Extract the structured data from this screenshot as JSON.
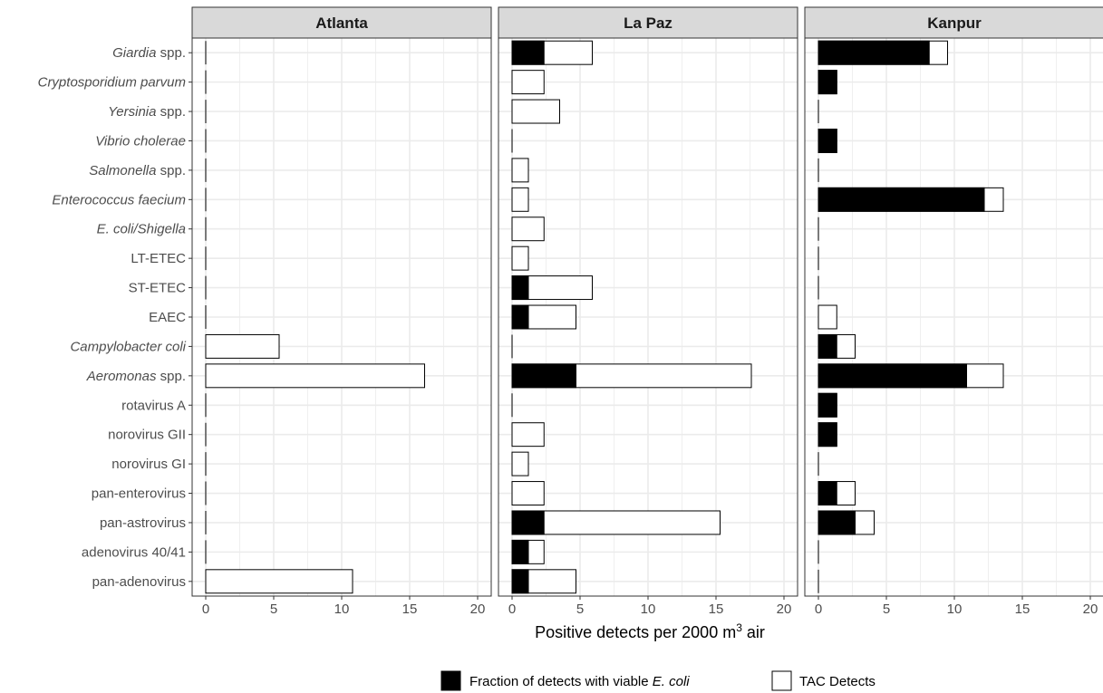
{
  "chart_data": {
    "type": "bar",
    "orientation": "horizontal",
    "stacked": "overlay",
    "xlabel": "Positive detects per 2000 m3 air",
    "xlabel_parts": {
      "prefix": "Positive detects per 2000 m",
      "superscript": "3",
      "suffix": " air"
    },
    "xlim": [
      0,
      20
    ],
    "xticks": [
      0,
      5,
      10,
      15,
      20
    ],
    "grid": true,
    "legend_position": "bottom",
    "categories": [
      {
        "name": "Giardia",
        "suffix": " spp.",
        "italic": true
      },
      {
        "name": "Cryptosporidium parvum",
        "suffix": "",
        "italic": true
      },
      {
        "name": "Yersinia",
        "suffix": " spp.",
        "italic": true
      },
      {
        "name": "Vibrio cholerae",
        "suffix": "",
        "italic": true
      },
      {
        "name": "Salmonella",
        "suffix": " spp.",
        "italic": true
      },
      {
        "name": "Enterococcus faecium",
        "suffix": "",
        "italic": true
      },
      {
        "name": "E. coli/Shigella",
        "suffix": "",
        "italic": true
      },
      {
        "name": "LT-ETEC",
        "suffix": "",
        "italic": false
      },
      {
        "name": "ST-ETEC",
        "suffix": "",
        "italic": false
      },
      {
        "name": "EAEC",
        "suffix": "",
        "italic": false
      },
      {
        "name": "Campylobacter coli",
        "suffix": "",
        "italic": true
      },
      {
        "name": "Aeromonas",
        "suffix": " spp.",
        "italic": true
      },
      {
        "name": "rotavirus A",
        "suffix": "",
        "italic": false
      },
      {
        "name": "norovirus GII",
        "suffix": "",
        "italic": false
      },
      {
        "name": "norovirus GI",
        "suffix": "",
        "italic": false
      },
      {
        "name": "pan-enterovirus",
        "suffix": "",
        "italic": false
      },
      {
        "name": "pan-astrovirus",
        "suffix": "",
        "italic": false
      },
      {
        "name": "adenovirus 40/41",
        "suffix": "",
        "italic": false
      },
      {
        "name": "pan-adenovirus",
        "suffix": "",
        "italic": false
      }
    ],
    "panels": [
      {
        "title": "Atlanta",
        "tac_detects": [
          0,
          0,
          0,
          0,
          0,
          0,
          0,
          0,
          0,
          0,
          5.4,
          16.1,
          0,
          0,
          0,
          0,
          0,
          0,
          10.8
        ],
        "viable_e_coli": [
          0,
          0,
          0,
          0,
          0,
          0,
          0,
          0,
          0,
          0,
          0,
          0,
          0,
          0,
          0,
          0,
          0,
          0,
          0
        ]
      },
      {
        "title": "La Paz",
        "tac_detects": [
          5.9,
          2.35,
          3.5,
          0,
          1.2,
          1.2,
          2.35,
          1.2,
          5.9,
          4.7,
          0,
          17.6,
          0,
          2.35,
          1.2,
          2.35,
          15.3,
          2.35,
          4.7
        ],
        "viable_e_coli": [
          2.35,
          0,
          0,
          0,
          0,
          0,
          0,
          0,
          1.2,
          1.2,
          0,
          4.7,
          0,
          0,
          0,
          0,
          2.35,
          1.2,
          1.2
        ]
      },
      {
        "title": "Kanpur",
        "tac_detects": [
          9.5,
          1.35,
          0,
          1.35,
          0,
          13.6,
          0,
          0,
          0,
          1.35,
          2.7,
          13.6,
          1.35,
          1.35,
          0,
          2.7,
          4.1,
          0,
          0
        ],
        "viable_e_coli": [
          8.15,
          1.35,
          0,
          1.35,
          0,
          12.2,
          0,
          0,
          0,
          0,
          1.35,
          10.9,
          1.35,
          1.35,
          0,
          1.35,
          2.7,
          0,
          0
        ]
      }
    ],
    "legend": {
      "viable": {
        "prefix": "Fraction of detects with viable ",
        "italic": "E. coli",
        "color": "#000000"
      },
      "tac": {
        "label": "TAC Detects",
        "color": "#ffffff"
      }
    },
    "colors": {
      "strip_fill": "#d9d9d9",
      "panel_border": "#333333",
      "grid": "#ebebeb",
      "bar_outline": "#000000"
    }
  }
}
